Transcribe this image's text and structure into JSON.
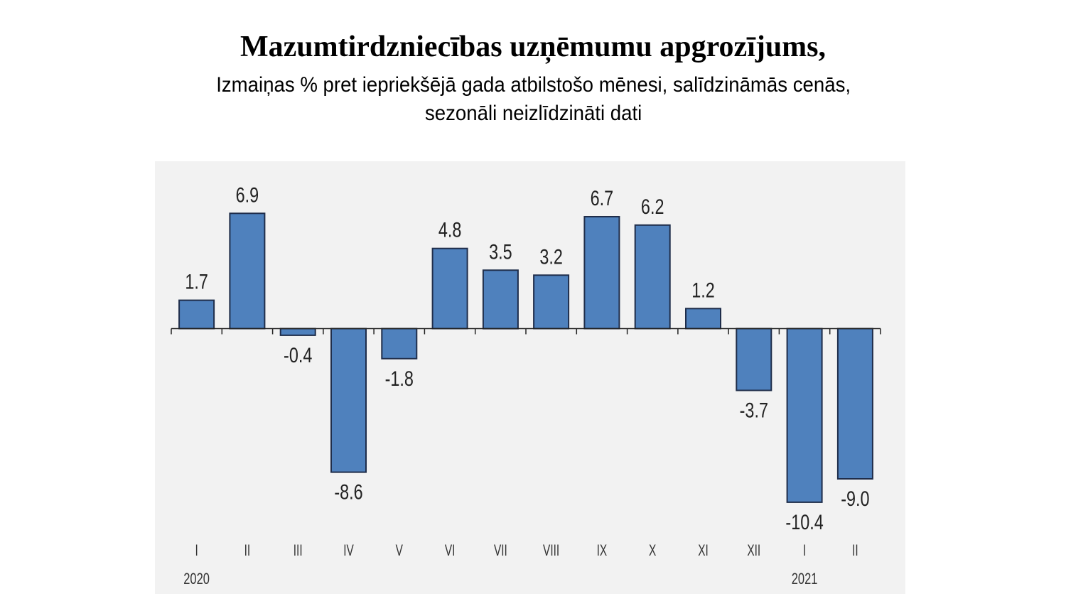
{
  "chart_data": {
    "type": "bar",
    "title": "Mazumtirdzniecības uzņēmumu apgrozījums,",
    "subtitle_line1": "Izmaiņas % pret iepriekšējā gada atbilstošo mēnesi, salīdzināmās cenās,",
    "subtitle_line2": "sezonāli neizlīdzināti dati",
    "categories": [
      "I",
      "II",
      "III",
      "IV",
      "V",
      "VI",
      "VII",
      "VIII",
      "IX",
      "X",
      "XI",
      "XII",
      "I",
      "II"
    ],
    "values": [
      1.7,
      6.9,
      -0.4,
      -8.6,
      -1.8,
      4.8,
      3.5,
      3.2,
      6.7,
      6.2,
      1.2,
      -3.7,
      -10.4,
      -9.0
    ],
    "value_labels": [
      "1.7",
      "6.9",
      "-0.4",
      "-8.6",
      "-1.8",
      "4.8",
      "3.5",
      "3.2",
      "6.7",
      "6.2",
      "1.2",
      "-3.7",
      "-10.4",
      "-9.0"
    ],
    "year_labels": [
      {
        "index": 0,
        "text": "2020"
      },
      {
        "index": 12,
        "text": "2021"
      }
    ],
    "bar_color": "#4f81bd",
    "bar_edge_color": "#1f2d4a",
    "background": "#f2f2f2",
    "xlabel": "",
    "ylabel": "",
    "ylim": [
      -12,
      9
    ]
  }
}
